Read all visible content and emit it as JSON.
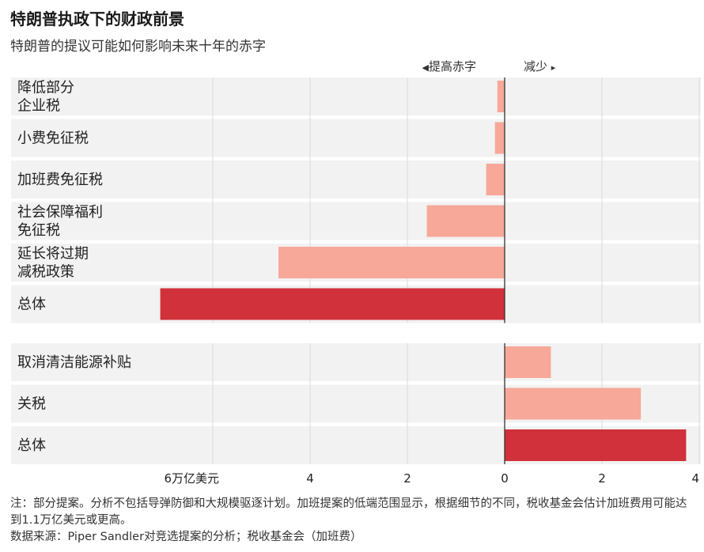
{
  "title": "特朗普执政下的财政前景",
  "subtitle": "特朗普的提议可能如何影响未来十年的赤字",
  "direction": {
    "increase_label": "提高赤字",
    "decrease_label": "减少"
  },
  "notes": {
    "note": "注：部分提案。分析不包括导弹防御和大规模驱逐计划。加班提案的低端范围显示，根据细节的不同，税收基金会估计加班费用可能达到1.1万亿美元或更高。",
    "source": "数据来源：Piper Sandler对竞选提案的分析；税收基金会（加班费）"
  },
  "colors": {
    "bar_light": "#f7a898",
    "bar_total": "#d0313a",
    "row_bg": "#f2f2f2",
    "grid": "#dadada",
    "axis": "#333333"
  },
  "chart_data": {
    "type": "bar",
    "orientation": "horizontal",
    "unit": "万亿美元",
    "xlim": [
      -7.4,
      4.1
    ],
    "xticks": [
      {
        "value": -6,
        "label": "6万亿美元"
      },
      {
        "value": -4,
        "label": "4"
      },
      {
        "value": -2,
        "label": "2"
      },
      {
        "value": 0,
        "label": "0"
      },
      {
        "value": 2,
        "label": "2"
      },
      {
        "value": 4,
        "label": "4"
      }
    ],
    "groups": [
      {
        "rows": [
          {
            "label": [
              "降低部分",
              "企业税"
            ],
            "value": -0.15,
            "kind": "item"
          },
          {
            "label": [
              "小费免征税"
            ],
            "value": -0.2,
            "kind": "item"
          },
          {
            "label": [
              "加班费免征税"
            ],
            "value": -0.38,
            "kind": "item"
          },
          {
            "label": [
              "社会保障福利",
              "免征税"
            ],
            "value": -1.6,
            "kind": "item"
          },
          {
            "label": [
              "延长将过期",
              "减税政策"
            ],
            "value": -4.65,
            "kind": "item"
          },
          {
            "label": [
              "总体"
            ],
            "value": -7.08,
            "kind": "total"
          }
        ]
      },
      {
        "rows": [
          {
            "label": [
              "取消清洁能源补贴"
            ],
            "value": 0.95,
            "kind": "item"
          },
          {
            "label": [
              "关税"
            ],
            "value": 2.8,
            "kind": "item"
          },
          {
            "label": [
              "总体"
            ],
            "value": 3.73,
            "kind": "total"
          }
        ]
      }
    ]
  }
}
